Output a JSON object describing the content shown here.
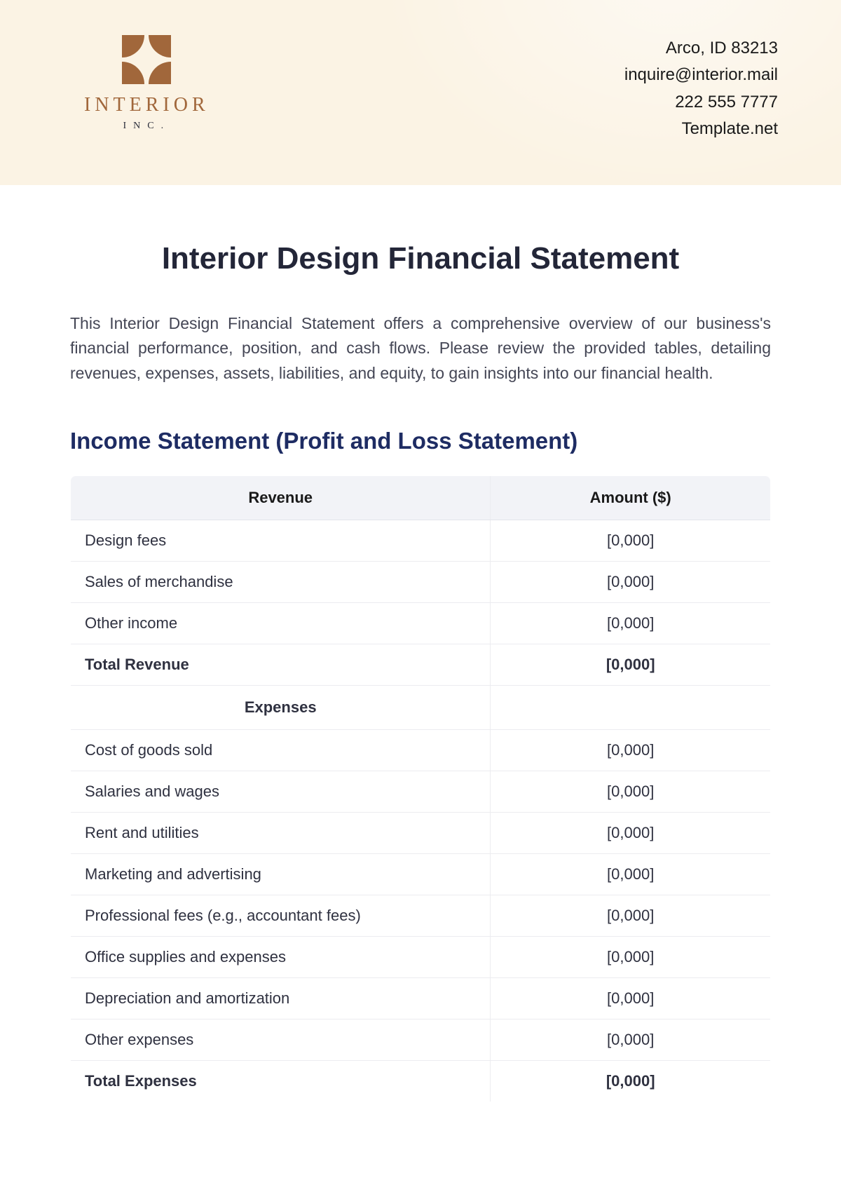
{
  "colors": {
    "header_bg": "#fbf3e4",
    "logo_brown": "#a1673b",
    "title_dark": "#232638",
    "section_blue": "#1e2c63",
    "body_text": "#444655",
    "table_header_bg": "#f2f3f7",
    "border": "#e3e5ea",
    "row_border": "#ececf0"
  },
  "logo": {
    "name": "INTERIOR",
    "sub": "INC."
  },
  "contact": {
    "address": "Arco, ID 83213",
    "email": "inquire@interior.mail",
    "phone": "222 555 7777",
    "site": "Template.net"
  },
  "title": "Interior Design Financial Statement",
  "intro": "This Interior Design Financial Statement offers a comprehensive overview of our business's financial performance, position, and cash flows. Please review the provided tables, detailing revenues, expenses, assets, liabilities, and equity, to gain insights into our financial health.",
  "section_heading": "Income Statement (Profit and Loss Statement)",
  "income_table": {
    "col_label_header": "Revenue",
    "col_amount_header": "Amount ($)",
    "revenue_rows": [
      {
        "label": "Design fees",
        "amount": "[0,000]"
      },
      {
        "label": "Sales of merchandise",
        "amount": "[0,000]"
      },
      {
        "label": "Other income",
        "amount": "[0,000]"
      }
    ],
    "total_revenue": {
      "label": "Total Revenue",
      "amount": "[0,000]"
    },
    "expenses_header": "Expenses",
    "expense_rows": [
      {
        "label": "Cost of goods sold",
        "amount": "[0,000]"
      },
      {
        "label": "Salaries and wages",
        "amount": "[0,000]"
      },
      {
        "label": "Rent and utilities",
        "amount": "[0,000]"
      },
      {
        "label": "Marketing and advertising",
        "amount": "[0,000]"
      },
      {
        "label": "Professional fees (e.g., accountant fees)",
        "amount": "[0,000]"
      },
      {
        "label": "Office supplies and expenses",
        "amount": "[0,000]"
      },
      {
        "label": "Depreciation and amortization",
        "amount": "[0,000]"
      },
      {
        "label": "Other expenses",
        "amount": "[0,000]"
      }
    ],
    "total_expenses": {
      "label": "Total Expenses",
      "amount": "[0,000]"
    }
  }
}
